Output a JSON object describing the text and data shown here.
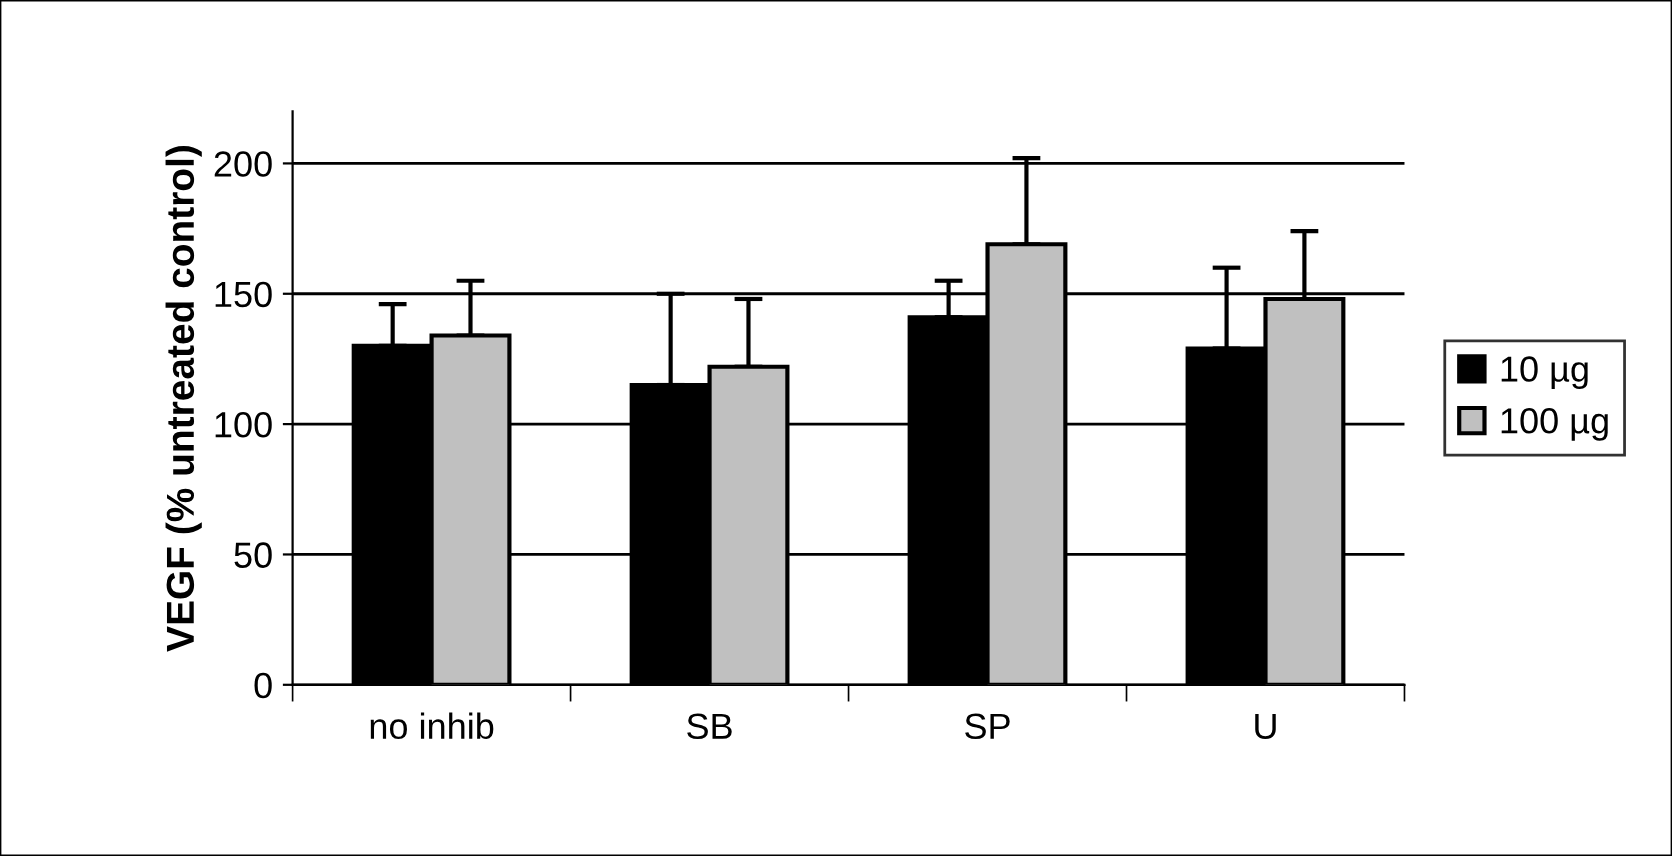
{
  "chart_data": {
    "type": "bar",
    "ylabel": "VEGF (% untreated control)",
    "categories": [
      "no inhib",
      "SB",
      "SP",
      "U"
    ],
    "series": [
      {
        "name": "10 µg",
        "color": "#000000",
        "values": [
          130,
          115,
          141,
          129
        ],
        "errors": [
          [
            130,
            146
          ],
          [
            115,
            150
          ],
          [
            141,
            155
          ],
          [
            129,
            160
          ]
        ]
      },
      {
        "name": "100 µg",
        "color": "#c0c0c0",
        "values": [
          134,
          122,
          169,
          148
        ],
        "errors": [
          [
            134,
            155
          ],
          [
            122,
            148
          ],
          [
            169,
            202
          ],
          [
            148,
            174
          ]
        ]
      }
    ],
    "ylim": [
      0,
      220
    ],
    "yticks": [
      0,
      50,
      100,
      150,
      200
    ],
    "grid": "y",
    "legend": "right"
  }
}
